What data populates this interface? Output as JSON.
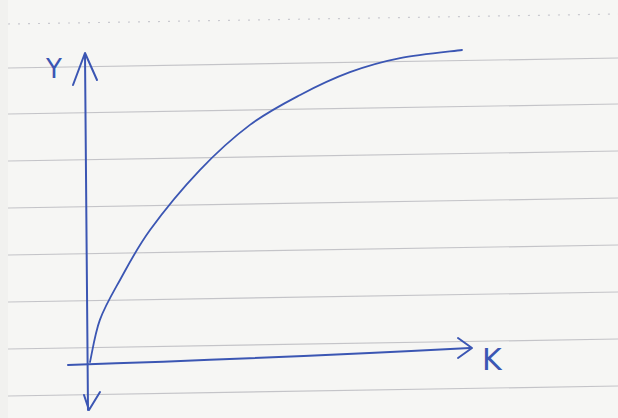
{
  "chart_data": {
    "type": "line",
    "x_label": "K",
    "y_label": "Y",
    "x": [
      0,
      0.26,
      0.79,
      1.58,
      2.89,
      4.21,
      5.53,
      6.84,
      8.16,
      9.79
    ],
    "series": [
      {
        "color": "#3b56b3",
        "values": [
          0,
          1.35,
          2.63,
          4.23,
          6.15,
          7.6,
          8.56,
          9.29,
          9.74,
          10
        ]
      }
    ],
    "xlim": [
      0,
      10
    ],
    "ylim": [
      0,
      10
    ],
    "grid": false,
    "tick_labels": false
  }
}
